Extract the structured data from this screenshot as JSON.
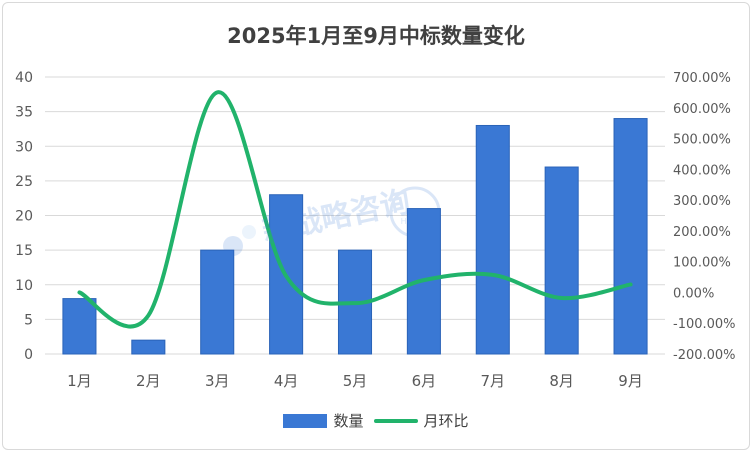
{
  "chart_data": {
    "type": "bar",
    "title": "2025年1月至9月中标数量变化",
    "categories": [
      "1月",
      "2月",
      "3月",
      "4月",
      "5月",
      "6月",
      "7月",
      "8月",
      "9月"
    ],
    "series": [
      {
        "name": "数量",
        "type": "bar",
        "axis": "left",
        "values": [
          8,
          2,
          15,
          23,
          15,
          21,
          33,
          27,
          34
        ],
        "color": "#3a78d4"
      },
      {
        "name": "月环比",
        "type": "line",
        "axis": "right",
        "smooth": true,
        "values": [
          0.0,
          -75.0,
          650.0,
          53.3,
          -34.8,
          40.0,
          57.1,
          -18.2,
          25.9
        ],
        "unit": "%",
        "color": "#21b36b"
      }
    ],
    "ylim_left": [
      0,
      40
    ],
    "yticks_left": [
      0,
      5,
      10,
      15,
      20,
      25,
      30,
      35,
      40
    ],
    "ylim_right": [
      -200,
      700
    ],
    "yticks_right": [
      "-200.00%",
      "-100.00%",
      "0.00%",
      "100.00%",
      "200.00%",
      "300.00%",
      "400.00%",
      "500.00%",
      "600.00%",
      "700.00%"
    ],
    "grid": true,
    "legend_position": "bottom"
  },
  "watermark": {
    "text": "新战略咨询",
    "logo_text": "HNAAA"
  }
}
